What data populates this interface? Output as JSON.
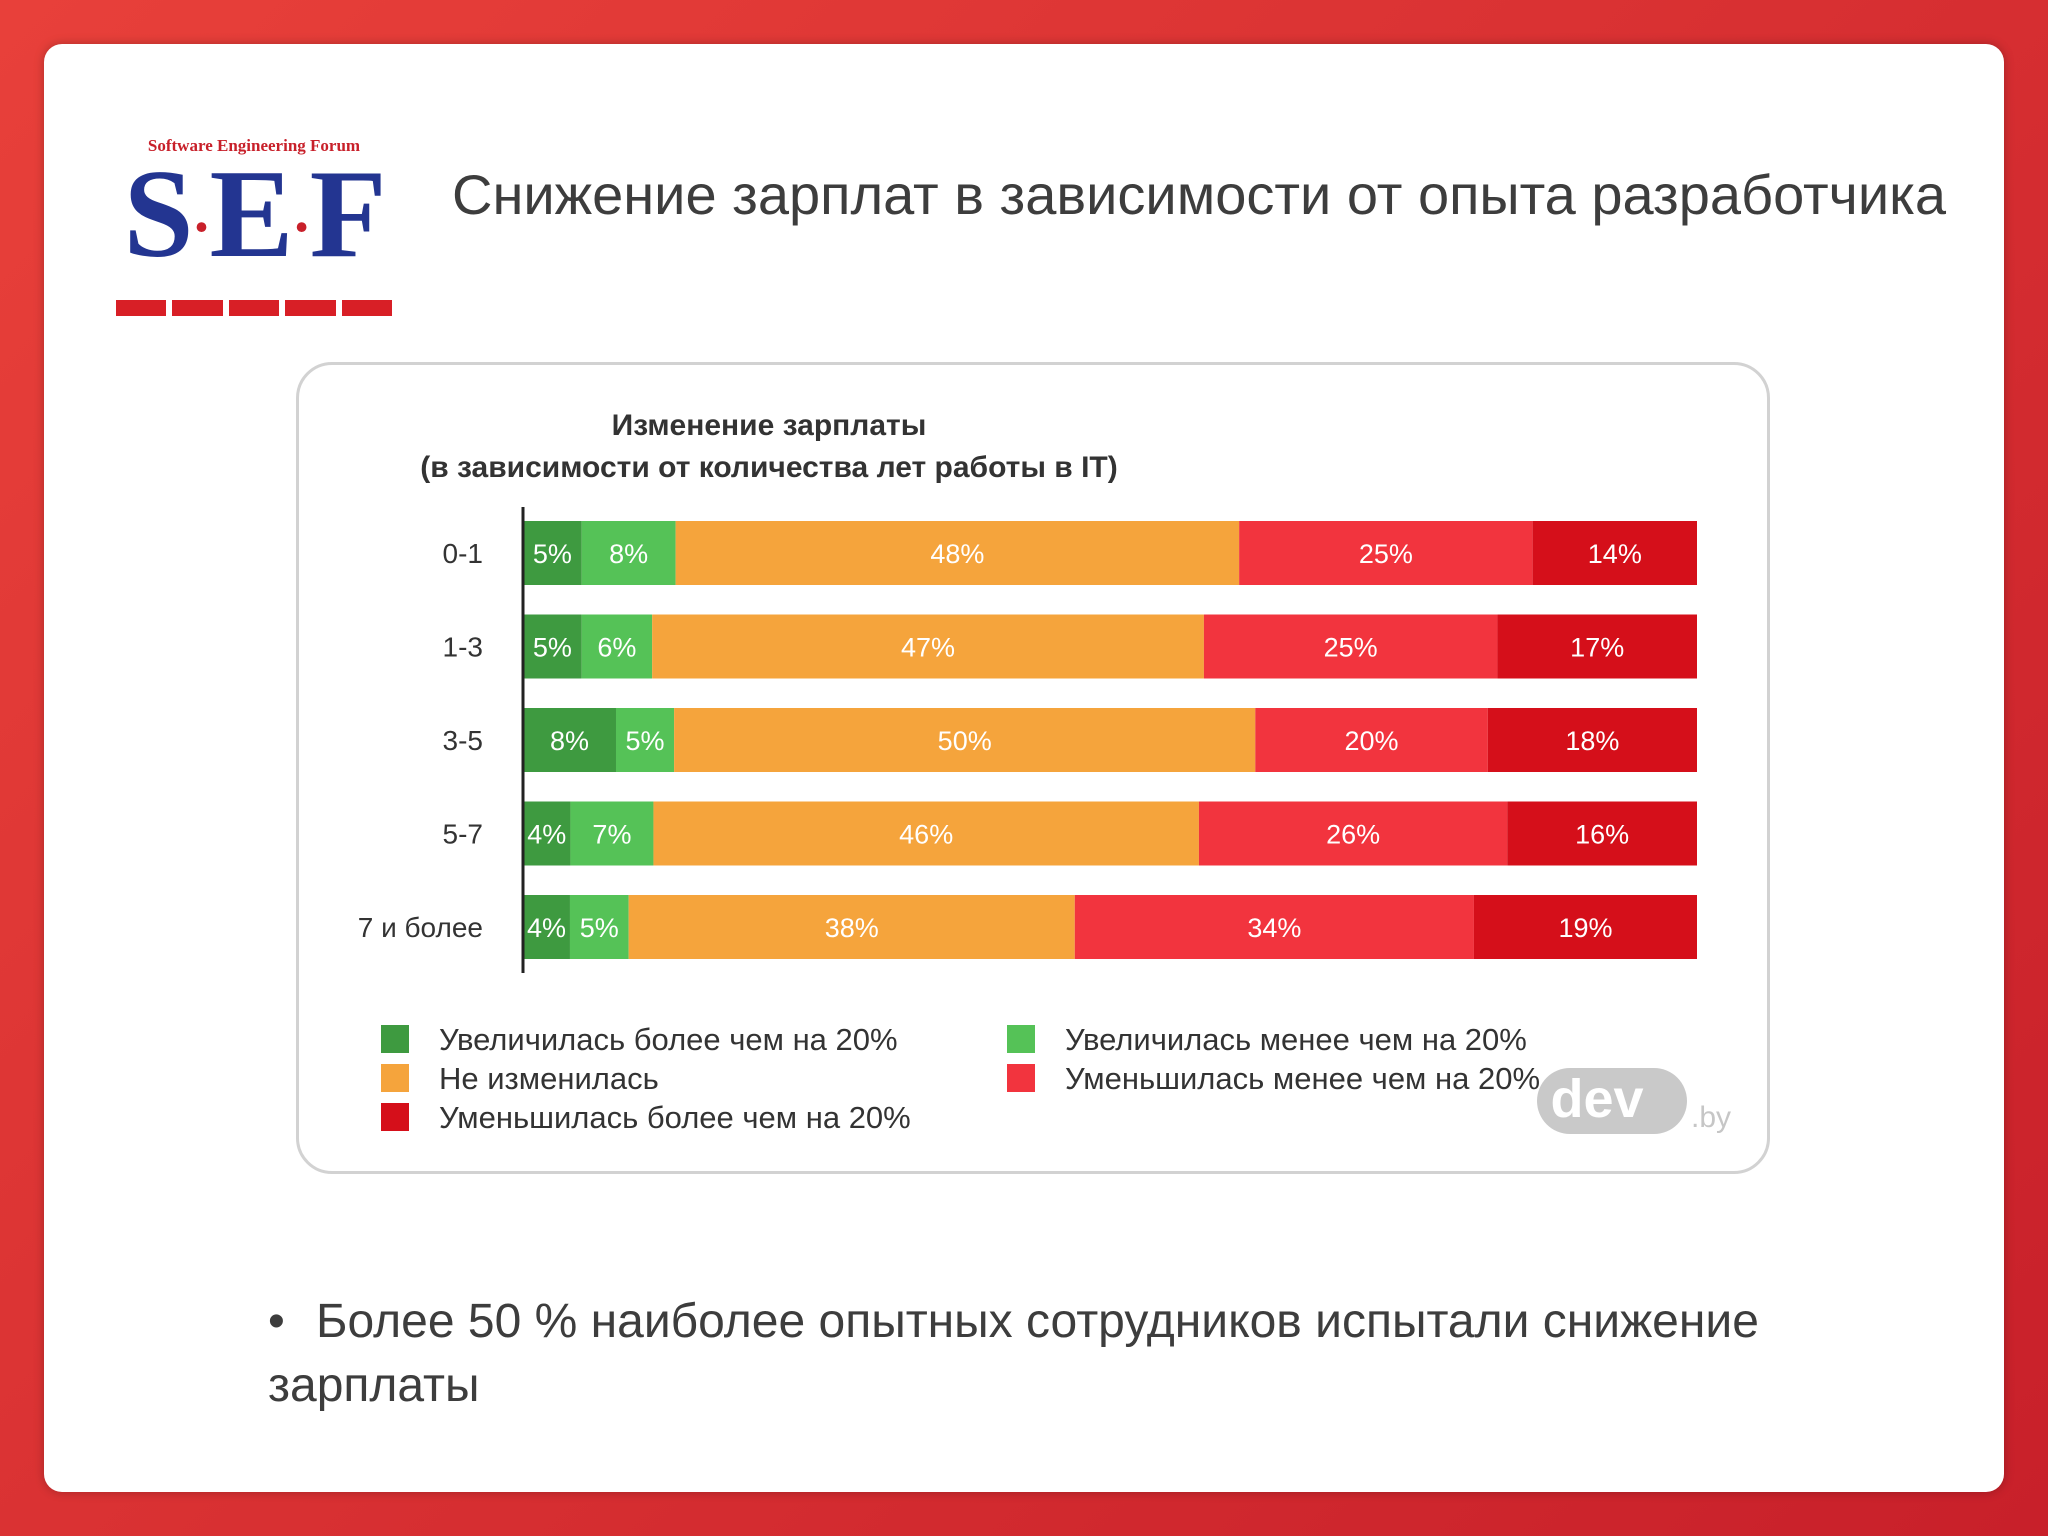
{
  "slide": {
    "logo": {
      "forum_text": "Software Engineering Forum",
      "letters": [
        "S",
        "E",
        "F"
      ],
      "dot": "·"
    },
    "title": "Снижение зарплат в зависимости от опыта разработчика",
    "bullet_mark": "•",
    "bullet_text": "Более 50 % наиболее опытных сотрудников испытали снижение зарплаты"
  },
  "watermark": {
    "brand": "dev",
    "suffix": ".by"
  },
  "colors": {
    "increased_more_20": "#3e9a40",
    "increased_less_20": "#55c257",
    "unchanged": "#f5a43c",
    "decreased_less_20": "#f2343e",
    "decreased_more_20": "#d50f1a"
  },
  "chart_data": {
    "type": "bar",
    "orientation": "horizontal",
    "stacked": true,
    "title": [
      "Изменение зарплаты",
      "(в зависимости от количества лет работы в IT)"
    ],
    "categories": [
      "0-1",
      "1-3",
      "3-5",
      "5-7",
      "7 и более"
    ],
    "series": [
      {
        "name": "Увеличилась более чем на 20%",
        "color_key": "increased_more_20",
        "values": [
          5,
          5,
          8,
          4,
          4
        ]
      },
      {
        "name": "Увеличилась менее чем на 20%",
        "color_key": "increased_less_20",
        "values": [
          8,
          6,
          5,
          7,
          5
        ]
      },
      {
        "name": "Не изменилась",
        "color_key": "unchanged",
        "values": [
          48,
          47,
          50,
          46,
          38
        ]
      },
      {
        "name": "Уменьшилась менее чем на 20%",
        "color_key": "decreased_less_20",
        "values": [
          25,
          25,
          20,
          26,
          34
        ]
      },
      {
        "name": "Уменьшилась более чем на 20%",
        "color_key": "decreased_more_20",
        "values": [
          14,
          17,
          18,
          16,
          19
        ]
      }
    ],
    "value_suffix": "%",
    "xlim": [
      0,
      100
    ],
    "legend": {
      "placement": "bottom",
      "columns": [
        [
          "Увеличилась более чем на 20%",
          "Не изменилась",
          "Уменьшилась более чем на 20%"
        ],
        [
          "Увеличилась менее чем на 20%",
          "Уменьшилась менее чем на 20%"
        ]
      ]
    },
    "grid": false
  }
}
